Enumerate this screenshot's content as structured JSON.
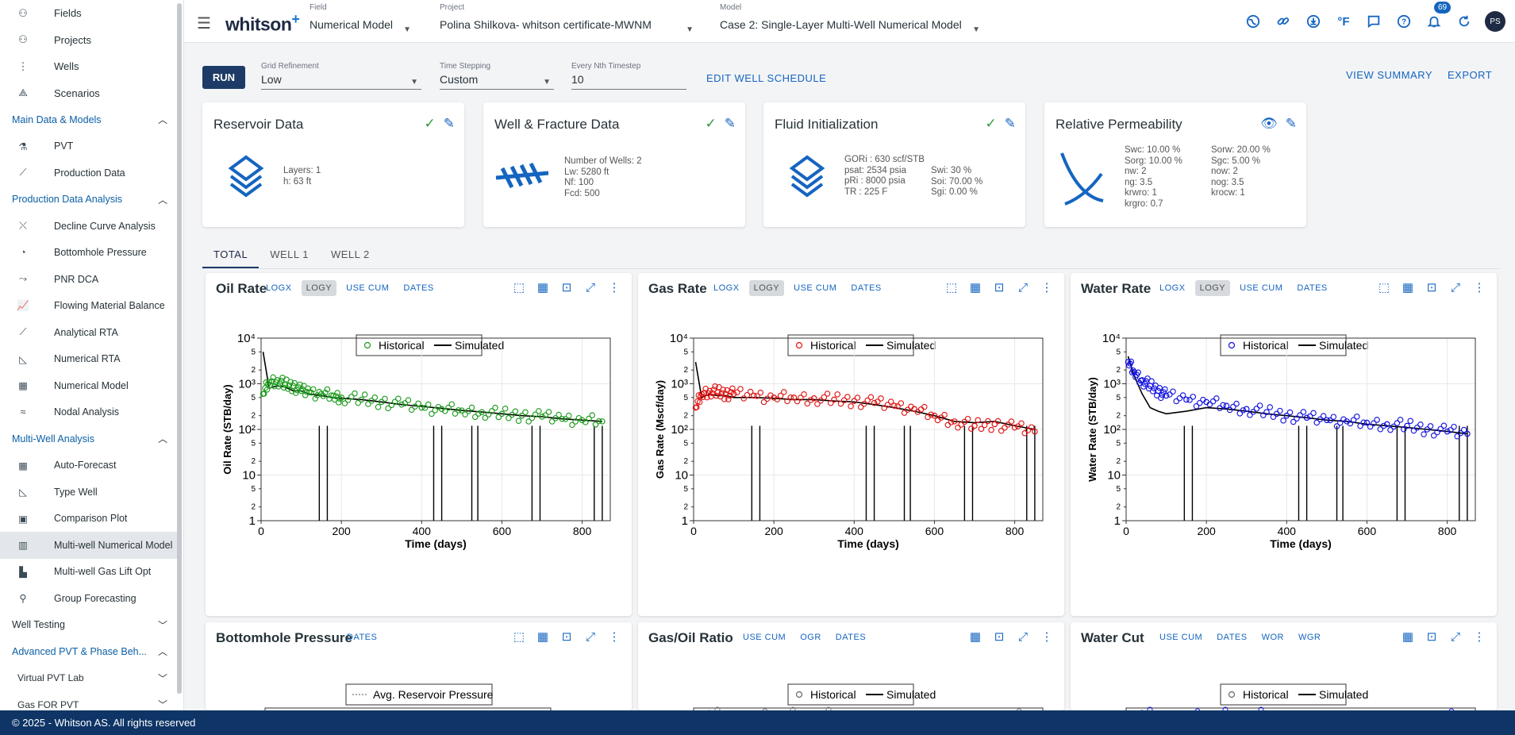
{
  "sidebar": {
    "top_items": [
      {
        "label": "Fields",
        "icon": "fields-icon"
      },
      {
        "label": "Projects",
        "icon": "projects-icon"
      },
      {
        "label": "Wells",
        "icon": "wells-icon"
      },
      {
        "label": "Scenarios",
        "icon": "scenarios-icon"
      }
    ],
    "sections": [
      {
        "label": "Main Data & Models",
        "expanded": true,
        "items": [
          {
            "label": "PVT",
            "icon": "flask-icon"
          },
          {
            "label": "Production Data",
            "icon": "trend-icon"
          }
        ]
      },
      {
        "label": "Production Data Analysis",
        "expanded": true,
        "items": [
          {
            "label": "Decline Curve Analysis",
            "icon": "dca-icon"
          },
          {
            "label": "Bottomhole Pressure",
            "icon": "gauge-icon"
          },
          {
            "label": "PNR DCA",
            "icon": "pnr-icon"
          },
          {
            "label": "Flowing Material Balance",
            "icon": "fmb-icon"
          },
          {
            "label": "Analytical RTA",
            "icon": "trend-icon"
          },
          {
            "label": "Numerical RTA",
            "icon": "rta-icon"
          },
          {
            "label": "Numerical Model",
            "icon": "grid-icon"
          },
          {
            "label": "Nodal Analysis",
            "icon": "nodal-icon"
          }
        ]
      },
      {
        "label": "Multi-Well Analysis",
        "expanded": true,
        "items": [
          {
            "label": "Auto-Forecast",
            "icon": "dashboard-icon"
          },
          {
            "label": "Type Well",
            "icon": "typewell-icon"
          },
          {
            "label": "Comparison Plot",
            "icon": "comparison-icon"
          },
          {
            "label": "Multi-well Numerical Model",
            "icon": "columns-icon",
            "active": true
          },
          {
            "label": "Multi-well Gas Lift Opt",
            "icon": "gaslift-icon"
          },
          {
            "label": "Group Forecasting",
            "icon": "group-icon"
          }
        ]
      }
    ],
    "collapsed": [
      {
        "label": "Well Testing",
        "plain": true
      },
      {
        "label": "Advanced PVT & Phase Beh...",
        "expanded": true
      }
    ],
    "sub_items": [
      "Virtual PVT Lab",
      "Gas FOR PVT"
    ]
  },
  "header": {
    "logo": "whitson",
    "logo_plus": "+",
    "field": {
      "label": "Field",
      "value": "Numerical Model"
    },
    "project": {
      "label": "Project",
      "value": "Polina Shilkova- whitson certificate-MWNM"
    },
    "model": {
      "label": "Model",
      "value": "Case 2: Single-Layer Multi-Well Numerical Model"
    },
    "notifications": "69",
    "avatar": "PS",
    "units_icon": "°F"
  },
  "toolbar": {
    "run": "RUN",
    "grid": {
      "label": "Grid Refinement",
      "value": "Low"
    },
    "time": {
      "label": "Time Stepping",
      "value": "Custom"
    },
    "nth": {
      "label": "Every Nth Timestep",
      "value": "10"
    },
    "edit_schedule": "EDIT WELL SCHEDULE",
    "view_summary": "VIEW SUMMARY",
    "export": "EXPORT"
  },
  "cards": {
    "reservoir": {
      "title": "Reservoir Data",
      "lines": [
        "Layers:  1",
        "h:  63 ft"
      ]
    },
    "well": {
      "title": "Well & Fracture Data",
      "lines": [
        "Number of Wells:  2",
        "Lw:  5280 ft",
        "Nf:  100",
        "Fcd:  500"
      ]
    },
    "fluid": {
      "title": "Fluid Initialization",
      "col1": [
        "GORi :  630 scf/STB",
        "psat:  2534 psia",
        "pRi :  8000 psia",
        "TR :  225 F"
      ],
      "col2": [
        "Swi:  30 %",
        "Soi:  70.00 %",
        "Sgi:  0.00 %"
      ]
    },
    "relperm": {
      "title": "Relative Permeability",
      "col1": [
        "Swc:  10.00 %",
        "Sorg:  10.00 %",
        "nw:  2",
        "ng:  3.5",
        "krwro:  1",
        "krgro:  0.7"
      ],
      "col2": [
        "Sorw:  20.00 %",
        "Sgc:  5.00 %",
        "now:  2",
        "nog:  3.5",
        "krocw:  1"
      ]
    }
  },
  "tabs": [
    "TOTAL",
    "WELL 1",
    "WELL 2"
  ],
  "colors": {
    "accent": "#1565c0",
    "navy": "#1d3b66",
    "oil": "#1a9a1a",
    "gas": "#e01010",
    "water": "#1010e0"
  },
  "panels": {
    "oil": {
      "title": "Oil Rate",
      "toggles": [
        "LOGX",
        "LOGY",
        "USE CUM",
        "DATES"
      ],
      "legend": [
        "Historical",
        "Simulated"
      ]
    },
    "gas": {
      "title": "Gas Rate",
      "toggles": [
        "LOGX",
        "LOGY",
        "USE CUM",
        "DATES"
      ],
      "legend": [
        "Historical",
        "Simulated"
      ]
    },
    "water": {
      "title": "Water Rate",
      "toggles": [
        "LOGX",
        "LOGY",
        "USE CUM",
        "DATES"
      ],
      "legend": [
        "Historical",
        "Simulated"
      ]
    },
    "bhp": {
      "title": "Bottomhole Pressure",
      "toggles": [
        "DATES"
      ],
      "legend": [
        "Avg. Reservoir Pressure"
      ]
    },
    "gor": {
      "title": "Gas/Oil Ratio",
      "toggles": [
        "USE CUM",
        "OGR",
        "DATES"
      ],
      "legend": [
        "Historical",
        "Simulated"
      ]
    },
    "wcut": {
      "title": "Water Cut",
      "toggles": [
        "USE CUM",
        "DATES",
        "WOR",
        "WGR"
      ],
      "legend": [
        "Historical",
        "Simulated"
      ]
    }
  },
  "chart_data": [
    {
      "type": "scatter",
      "title": "Oil Rate",
      "xlabel": "Time (days)",
      "ylabel": "Oil Rate (STB/day)",
      "xlim": [
        0,
        870
      ],
      "ylim": [
        1,
        10000
      ],
      "log_y": true,
      "x_ticks": [
        0,
        200,
        400,
        600,
        800
      ],
      "y_ticks": [
        "1",
        "2",
        "5",
        "10",
        "2",
        "5",
        "10²",
        "2",
        "5",
        "10³",
        "2",
        "5",
        "10⁴"
      ],
      "series": [
        {
          "name": "Historical",
          "x": [
            5,
            20,
            40,
            60,
            80,
            100,
            120,
            150,
            180,
            200,
            250,
            300,
            350,
            400,
            450,
            500,
            550,
            600,
            650,
            700,
            750,
            800,
            850
          ],
          "y": [
            600,
            1100,
            1200,
            950,
            900,
            700,
            650,
            600,
            550,
            500,
            450,
            400,
            350,
            300,
            280,
            260,
            240,
            220,
            200,
            190,
            170,
            160,
            150
          ]
        },
        {
          "name": "Simulated",
          "x": [
            5,
            20,
            40,
            60,
            80,
            100,
            120,
            150,
            180,
            200,
            250,
            300,
            350,
            400,
            450,
            500,
            550,
            600,
            650,
            700,
            750,
            800,
            850
          ],
          "y": [
            5000,
            800,
            900,
            850,
            700,
            700,
            600,
            550,
            500,
            480,
            450,
            400,
            350,
            320,
            290,
            260,
            240,
            220,
            200,
            190,
            170,
            160,
            150
          ]
        }
      ]
    },
    {
      "type": "scatter",
      "title": "Gas Rate",
      "xlabel": "Time (days)",
      "ylabel": "Gas Rate (Mscf/day)",
      "xlim": [
        0,
        870
      ],
      "ylim": [
        1,
        10000
      ],
      "log_y": true,
      "x_ticks": [
        0,
        200,
        400,
        600,
        800
      ],
      "y_ticks": [
        "1",
        "2",
        "5",
        "10",
        "2",
        "5",
        "10²",
        "2",
        "5",
        "10³",
        "2",
        "5",
        "10⁴"
      ],
      "series": [
        {
          "name": "Historical",
          "x": [
            5,
            20,
            40,
            60,
            80,
            100,
            150,
            200,
            250,
            300,
            350,
            400,
            450,
            500,
            550,
            600,
            650,
            700,
            750,
            800,
            850
          ],
          "y": [
            300,
            600,
            700,
            650,
            600,
            600,
            550,
            500,
            500,
            480,
            450,
            420,
            380,
            330,
            280,
            200,
            150,
            120,
            130,
            110,
            90
          ]
        },
        {
          "name": "Simulated",
          "x": [
            5,
            20,
            40,
            60,
            80,
            100,
            150,
            200,
            250,
            300,
            350,
            400,
            450,
            500,
            550,
            600,
            650,
            700,
            750,
            800,
            850
          ],
          "y": [
            3000,
            500,
            600,
            550,
            550,
            500,
            500,
            480,
            450,
            450,
            420,
            400,
            350,
            300,
            250,
            200,
            150,
            140,
            150,
            120,
            100
          ]
        }
      ]
    },
    {
      "type": "scatter",
      "title": "Water Rate",
      "xlabel": "Time (days)",
      "ylabel": "Water Rate (STB/day)",
      "xlim": [
        0,
        870
      ],
      "ylim": [
        1,
        10000
      ],
      "log_y": true,
      "x_ticks": [
        0,
        200,
        400,
        600,
        800
      ],
      "y_ticks": [
        "1",
        "2",
        "5",
        "10",
        "2",
        "5",
        "10²",
        "2",
        "5",
        "10³",
        "2",
        "5",
        "10⁴"
      ],
      "series": [
        {
          "name": "Historical",
          "x": [
            5,
            20,
            40,
            60,
            80,
            100,
            150,
            200,
            250,
            300,
            350,
            400,
            450,
            500,
            550,
            600,
            650,
            700,
            750,
            800,
            850
          ],
          "y": [
            3000,
            1800,
            1200,
            900,
            700,
            550,
            450,
            400,
            330,
            280,
            240,
            200,
            180,
            160,
            150,
            140,
            130,
            120,
            100,
            90,
            80
          ]
        },
        {
          "name": "Simulated",
          "x": [
            5,
            20,
            40,
            60,
            80,
            100,
            150,
            200,
            250,
            300,
            350,
            400,
            450,
            500,
            550,
            600,
            650,
            700,
            750,
            800,
            850
          ],
          "y": [
            4000,
            1500,
            600,
            300,
            250,
            220,
            250,
            300,
            280,
            250,
            220,
            200,
            180,
            160,
            150,
            130,
            120,
            110,
            100,
            90,
            80
          ]
        }
      ]
    }
  ],
  "footer": "© 2025 - Whitson AS. All rights reserved"
}
